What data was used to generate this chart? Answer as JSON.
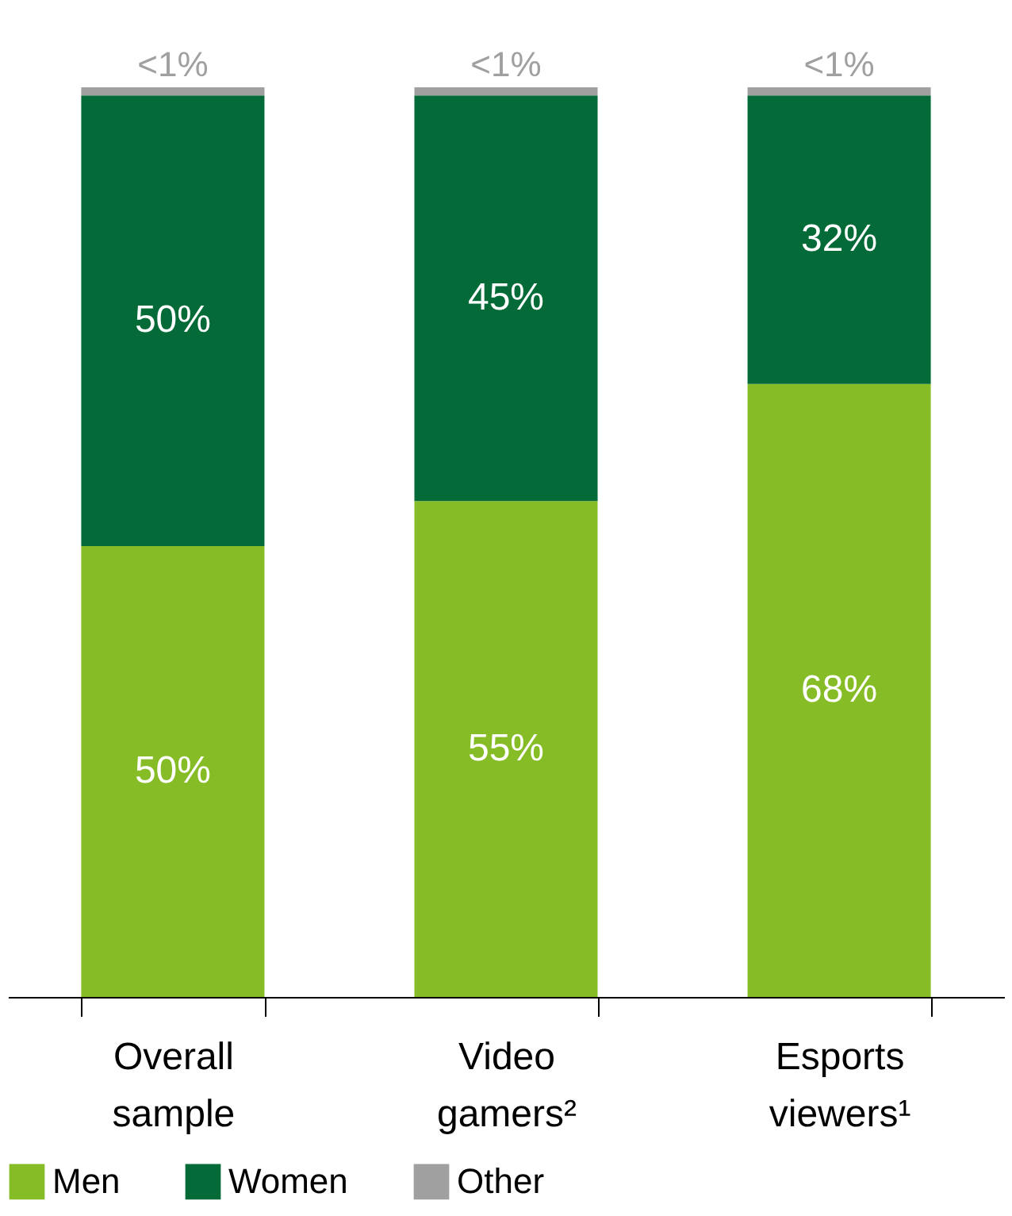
{
  "chart_data": {
    "type": "bar",
    "stacked": true,
    "categories": [
      "Overall sample",
      "Video gamers²",
      "Esports viewers¹"
    ],
    "series": [
      {
        "name": "Men",
        "color": "#86bc25",
        "values": [
          50,
          55,
          68
        ],
        "value_labels": [
          "50%",
          "55%",
          "68%"
        ]
      },
      {
        "name": "Women",
        "color": "#046a38",
        "values": [
          50,
          45,
          32
        ],
        "value_labels": [
          "50%",
          "45%",
          "32%"
        ]
      },
      {
        "name": "Other",
        "color": "#a0a0a0",
        "values": [
          0.9,
          0.9,
          0.9
        ],
        "value_labels": [
          "<1%",
          "<1%",
          "<1%"
        ]
      }
    ],
    "legend": "bottom",
    "grid": false
  }
}
